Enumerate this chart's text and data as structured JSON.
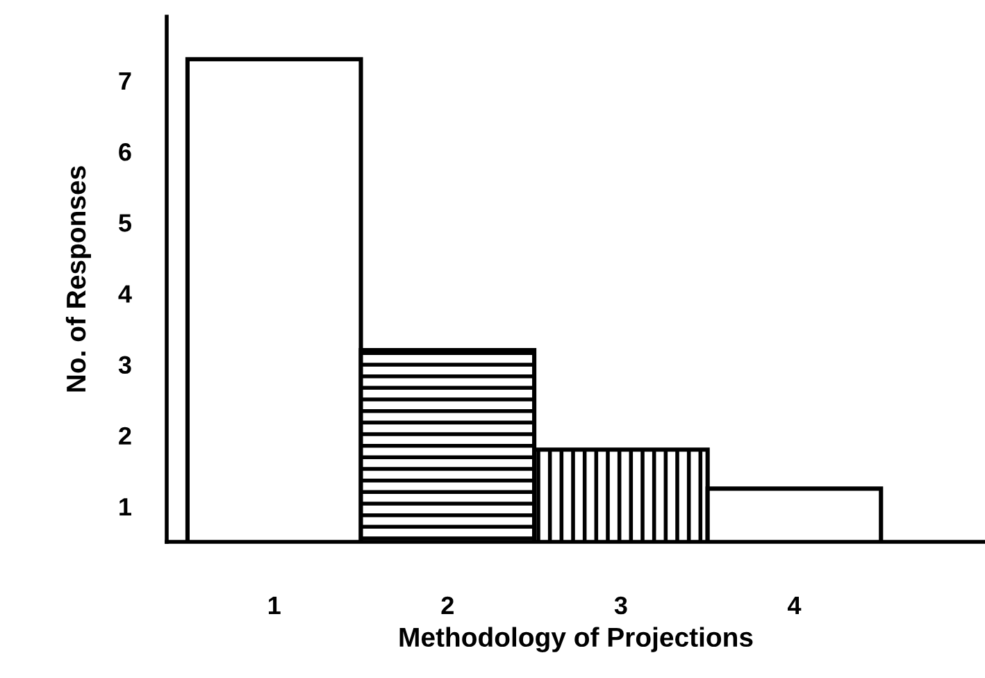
{
  "chart_data": {
    "type": "bar",
    "xlabel": "Methodology of Projections",
    "ylabel": "No. of Responses",
    "categories": [
      "1",
      "2",
      "3",
      "4"
    ],
    "values": [
      7.3,
      3.2,
      1.8,
      1.25
    ],
    "colors": [
      "#ffffff",
      "#000000",
      "#000000",
      "#ffffff"
    ],
    "ylim": [
      0.5,
      7.9
    ],
    "yticks": [
      1,
      2,
      3,
      4,
      5,
      6,
      7
    ],
    "grid": false,
    "legend": false
  }
}
